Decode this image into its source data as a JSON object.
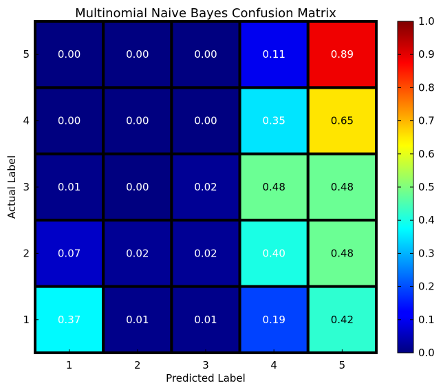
{
  "chart_data": {
    "type": "heatmap",
    "title": "Multinomial Naive Bayes Confusion Matrix",
    "xlabel": "Predicted Label",
    "ylabel": "Actual Label",
    "x_categories": [
      "1",
      "2",
      "3",
      "4",
      "5"
    ],
    "y_categories": [
      "5",
      "4",
      "3",
      "2",
      "1"
    ],
    "values": [
      [
        0.0,
        0.0,
        0.0,
        0.11,
        0.89
      ],
      [
        0.0,
        0.0,
        0.0,
        0.35,
        0.65
      ],
      [
        0.01,
        0.0,
        0.02,
        0.48,
        0.48
      ],
      [
        0.07,
        0.02,
        0.02,
        0.4,
        0.48
      ],
      [
        0.37,
        0.01,
        0.01,
        0.19,
        0.42
      ]
    ],
    "value_labels": [
      [
        "0.00",
        "0.00",
        "0.00",
        "0.11",
        "0.89"
      ],
      [
        "0.00",
        "0.00",
        "0.00",
        "0.35",
        "0.65"
      ],
      [
        "0.01",
        "0.00",
        "0.02",
        "0.48",
        "0.48"
      ],
      [
        "0.07",
        "0.02",
        "0.02",
        "0.40",
        "0.48"
      ],
      [
        "0.37",
        "0.01",
        "0.01",
        "0.19",
        "0.42"
      ]
    ],
    "value_range": [
      0,
      1
    ],
    "colormap": "jet",
    "colorbar": {
      "ticks": [
        0.0,
        0.1,
        0.2,
        0.3,
        0.4,
        0.5,
        0.6,
        0.7,
        0.8,
        0.9,
        1.0
      ],
      "tick_labels": [
        "0.0",
        "0.1",
        "0.2",
        "0.3",
        "0.4",
        "0.5",
        "0.6",
        "0.7",
        "0.8",
        "0.9",
        "1.0"
      ]
    },
    "grid": false,
    "cell_border_color": "#000000",
    "text_colors": {
      "light": "#ffffff",
      "dark": "#000000"
    }
  }
}
